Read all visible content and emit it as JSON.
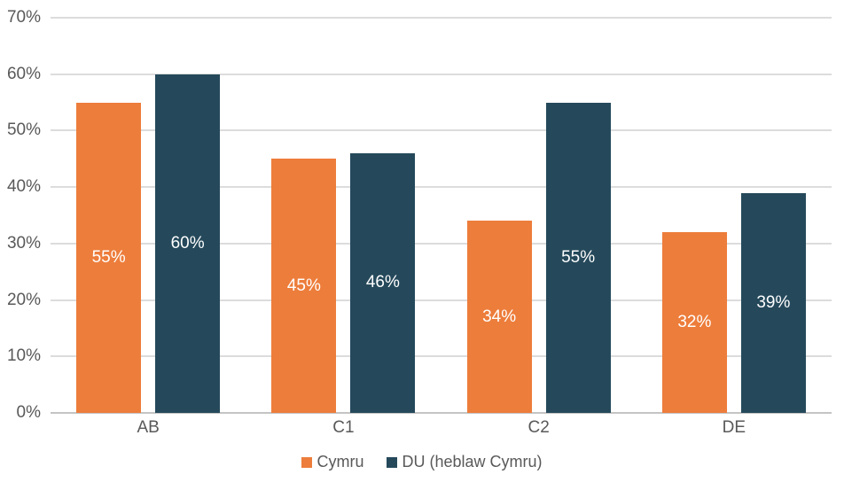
{
  "chart_data": {
    "type": "bar",
    "title": "",
    "categories": [
      "AB",
      "C1",
      "C2",
      "DE"
    ],
    "series": [
      {
        "name": "Cymru",
        "color": "#ED7D3B",
        "values": [
          55,
          45,
          34,
          32
        ],
        "labels": [
          "55%",
          "45%",
          "34%",
          "32%"
        ]
      },
      {
        "name": "DU (heblaw Cymru)",
        "color": "#25495B",
        "values": [
          60,
          46,
          55,
          39
        ],
        "labels": [
          "60%",
          "46%",
          "55%",
          "39%"
        ]
      }
    ],
    "ylim": [
      0,
      70
    ],
    "ytick_values": [
      0,
      10,
      20,
      30,
      40,
      50,
      60,
      70
    ],
    "yticks": [
      "0%",
      "10%",
      "20%",
      "30%",
      "40%",
      "50%",
      "60%",
      "70%"
    ],
    "grid": true,
    "legend_position": "bottom",
    "data_label_position": "inside-center",
    "data_label_color": "#FFFFFF"
  },
  "colors": {
    "background": "#FFFFFF",
    "gridline": "#DCDCDC",
    "axis_line": "#C4C4C4",
    "tick_text": "#595959",
    "legend_text": "#595959"
  }
}
